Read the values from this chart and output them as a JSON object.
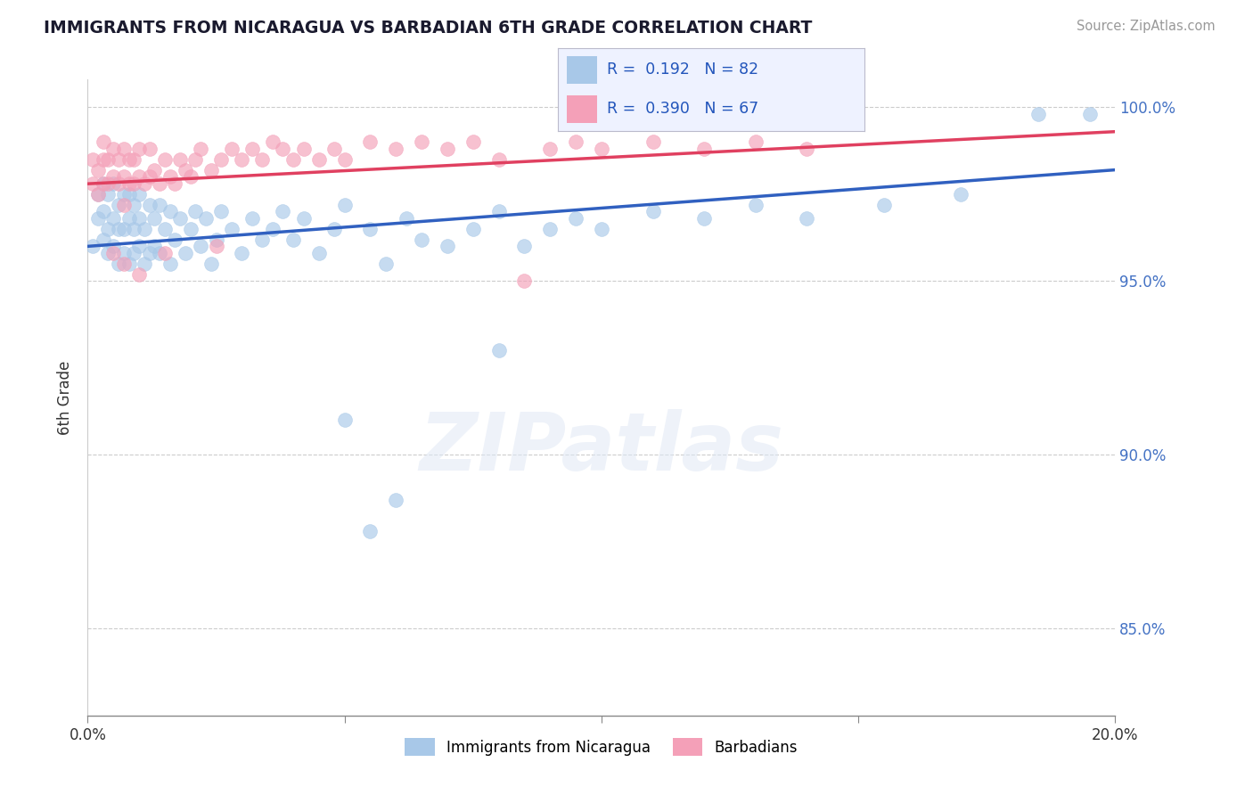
{
  "title": "IMMIGRANTS FROM NICARAGUA VS BARBADIAN 6TH GRADE CORRELATION CHART",
  "source": "Source: ZipAtlas.com",
  "ylabel": "6th Grade",
  "yticks": [
    "85.0%",
    "90.0%",
    "95.0%",
    "100.0%"
  ],
  "xlim": [
    0.0,
    0.2
  ],
  "ylim": [
    0.825,
    1.008
  ],
  "blue_R": "0.192",
  "blue_N": "82",
  "pink_R": "0.390",
  "pink_N": "67",
  "blue_color": "#A8C8E8",
  "pink_color": "#F4A0B8",
  "blue_line_color": "#3060C0",
  "pink_line_color": "#E04060",
  "blue_line_y0": 0.96,
  "blue_line_y1": 0.982,
  "pink_line_y0": 0.978,
  "pink_line_y1": 0.993,
  "blue_scatter_x": [
    0.001,
    0.002,
    0.002,
    0.003,
    0.003,
    0.003,
    0.004,
    0.004,
    0.004,
    0.005,
    0.005,
    0.005,
    0.006,
    0.006,
    0.006,
    0.007,
    0.007,
    0.007,
    0.008,
    0.008,
    0.008,
    0.009,
    0.009,
    0.009,
    0.01,
    0.01,
    0.01,
    0.011,
    0.011,
    0.012,
    0.012,
    0.013,
    0.013,
    0.014,
    0.014,
    0.015,
    0.016,
    0.016,
    0.017,
    0.018,
    0.019,
    0.02,
    0.021,
    0.022,
    0.023,
    0.024,
    0.025,
    0.026,
    0.028,
    0.03,
    0.032,
    0.034,
    0.036,
    0.038,
    0.04,
    0.042,
    0.045,
    0.048,
    0.05,
    0.055,
    0.058,
    0.062,
    0.065,
    0.07,
    0.075,
    0.08,
    0.085,
    0.09,
    0.095,
    0.1,
    0.11,
    0.12,
    0.13,
    0.14,
    0.155,
    0.17,
    0.05,
    0.08,
    0.055,
    0.06,
    0.185,
    0.195
  ],
  "blue_scatter_y": [
    0.96,
    0.968,
    0.975,
    0.962,
    0.97,
    0.978,
    0.958,
    0.965,
    0.975,
    0.96,
    0.968,
    0.978,
    0.955,
    0.965,
    0.972,
    0.958,
    0.965,
    0.975,
    0.955,
    0.968,
    0.975,
    0.958,
    0.965,
    0.972,
    0.96,
    0.968,
    0.975,
    0.955,
    0.965,
    0.958,
    0.972,
    0.96,
    0.968,
    0.958,
    0.972,
    0.965,
    0.955,
    0.97,
    0.962,
    0.968,
    0.958,
    0.965,
    0.97,
    0.96,
    0.968,
    0.955,
    0.962,
    0.97,
    0.965,
    0.958,
    0.968,
    0.962,
    0.965,
    0.97,
    0.962,
    0.968,
    0.958,
    0.965,
    0.972,
    0.965,
    0.955,
    0.968,
    0.962,
    0.96,
    0.965,
    0.97,
    0.96,
    0.965,
    0.968,
    0.965,
    0.97,
    0.968,
    0.972,
    0.968,
    0.972,
    0.975,
    0.91,
    0.93,
    0.878,
    0.887,
    0.998,
    0.998
  ],
  "pink_scatter_x": [
    0.001,
    0.001,
    0.002,
    0.002,
    0.003,
    0.003,
    0.003,
    0.004,
    0.004,
    0.005,
    0.005,
    0.006,
    0.006,
    0.007,
    0.007,
    0.007,
    0.008,
    0.008,
    0.009,
    0.009,
    0.01,
    0.01,
    0.011,
    0.012,
    0.012,
    0.013,
    0.014,
    0.015,
    0.016,
    0.017,
    0.018,
    0.019,
    0.02,
    0.021,
    0.022,
    0.024,
    0.026,
    0.028,
    0.03,
    0.032,
    0.034,
    0.036,
    0.038,
    0.04,
    0.042,
    0.045,
    0.048,
    0.05,
    0.055,
    0.06,
    0.065,
    0.07,
    0.075,
    0.08,
    0.085,
    0.09,
    0.095,
    0.1,
    0.11,
    0.12,
    0.13,
    0.14,
    0.005,
    0.007,
    0.01,
    0.015,
    0.025
  ],
  "pink_scatter_y": [
    0.978,
    0.985,
    0.975,
    0.982,
    0.978,
    0.985,
    0.99,
    0.978,
    0.985,
    0.98,
    0.988,
    0.978,
    0.985,
    0.972,
    0.98,
    0.988,
    0.978,
    0.985,
    0.978,
    0.985,
    0.98,
    0.988,
    0.978,
    0.98,
    0.988,
    0.982,
    0.978,
    0.985,
    0.98,
    0.978,
    0.985,
    0.982,
    0.98,
    0.985,
    0.988,
    0.982,
    0.985,
    0.988,
    0.985,
    0.988,
    0.985,
    0.99,
    0.988,
    0.985,
    0.988,
    0.985,
    0.988,
    0.985,
    0.99,
    0.988,
    0.99,
    0.988,
    0.99,
    0.985,
    0.95,
    0.988,
    0.99,
    0.988,
    0.99,
    0.988,
    0.99,
    0.988,
    0.958,
    0.955,
    0.952,
    0.958,
    0.96
  ]
}
